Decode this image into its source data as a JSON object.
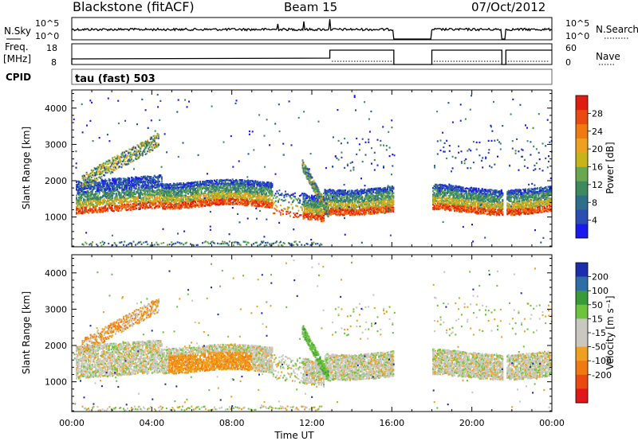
{
  "header": {
    "station": "Blackstone (fitACF)",
    "beam": "Beam 15",
    "date": "07/Oct/2012"
  },
  "noise_panel": {
    "left_label": "N.Sky",
    "right_label": "N.Search",
    "left_ticks": [
      "10^5",
      "10^0"
    ],
    "right_ticks": [
      "10^5",
      "10^0"
    ]
  },
  "freq_panel": {
    "left_label_line1": "Freq.",
    "left_label_line2": "[MHz]",
    "right_label": "Nave",
    "left_ticks": [
      "18",
      "8"
    ],
    "right_ticks": [
      "60",
      "0"
    ]
  },
  "cpid": {
    "label": "CPID",
    "value": "tau (fast) 503"
  },
  "chart_data": [
    {
      "type": "heatmap",
      "title": "",
      "xlabel": "Time UT",
      "ylabel": "Slant Range [km]",
      "xlim": [
        0,
        24
      ],
      "ylim": [
        180,
        4500
      ],
      "x_ticks": [
        "00:00",
        "04:00",
        "08:00",
        "12:00",
        "16:00",
        "20:00",
        "00:00"
      ],
      "y_ticks": [
        "1000",
        "2000",
        "3000",
        "4000"
      ],
      "colorbar": {
        "label": "Power [dB]",
        "ticks": [
          "4",
          "8",
          "12",
          "16",
          "20",
          "24",
          "28"
        ],
        "colors": [
          "#1a1aee",
          "#2a4fb0",
          "#2e6e8c",
          "#3c8a5e",
          "#6aa84f",
          "#c8b418",
          "#f0a020",
          "#f07a10",
          "#ea4a10",
          "#e01e10"
        ]
      },
      "data_gaps_ut": [
        [
          16.1,
          18.0
        ],
        [
          21.5,
          21.7
        ]
      ]
    },
    {
      "type": "heatmap",
      "title": "",
      "xlabel": "Time UT",
      "ylabel": "Slant Range [km]",
      "xlim": [
        0,
        24
      ],
      "ylim": [
        180,
        4500
      ],
      "x_ticks": [
        "00:00",
        "04:00",
        "08:00",
        "12:00",
        "16:00",
        "20:00",
        "00:00"
      ],
      "y_ticks": [
        "1000",
        "2000",
        "3000",
        "4000"
      ],
      "colorbar": {
        "label": "Velocity [m s⁻¹]",
        "ticks": [
          "200",
          "100",
          "50",
          "15",
          "-15",
          "-50",
          "-100",
          "-200"
        ],
        "colors": [
          "#1a2fb0",
          "#2e6ea8",
          "#3a9a3a",
          "#6cc43c",
          "#c8c8c0",
          "#c8c8c0",
          "#f0a020",
          "#f07a10",
          "#ea4a10",
          "#e01818"
        ]
      },
      "data_gaps_ut": [
        [
          16.1,
          18.0
        ],
        [
          21.5,
          21.7
        ]
      ]
    }
  ]
}
